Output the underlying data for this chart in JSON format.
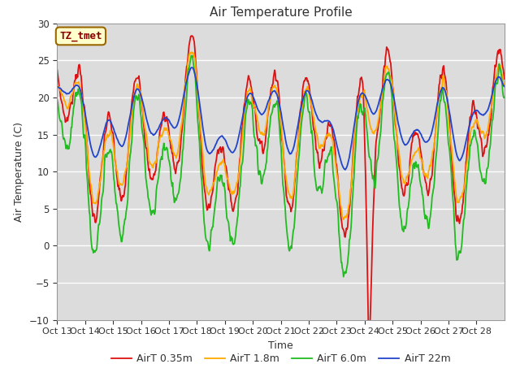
{
  "title": "Air Temperature Profile",
  "xlabel": "Time",
  "ylabel": "Air Temperature (C)",
  "ylim": [
    -10,
    30
  ],
  "bg_color": "#dcdcdc",
  "fig_color": "#ffffff",
  "grid_color": "#ffffff",
  "annotation_text": "TZ_tmet",
  "annotation_bg": "#ffffcc",
  "annotation_fg": "#880000",
  "series": {
    "AirT 0.35m": {
      "color": "#dd1111",
      "lw": 1.3
    },
    "AirT 1.8m": {
      "color": "#ffaa00",
      "lw": 1.3
    },
    "AirT 6.0m": {
      "color": "#22bb22",
      "lw": 1.3
    },
    "AirT 22m": {
      "color": "#2244cc",
      "lw": 1.3
    }
  },
  "xtick_labels": [
    "Oct 13",
    "Oct 14",
    "Oct 15",
    "Oct 16",
    "Oct 17",
    "Oct 18",
    "Oct 19",
    "Oct 20",
    "Oct 21",
    "Oct 22",
    "Oct 23",
    "Oct 24",
    "Oct 25",
    "Oct 26",
    "Oct 27",
    "Oct 28"
  ],
  "ytick_values": [
    -10,
    -5,
    0,
    5,
    10,
    15,
    20,
    25,
    30
  ]
}
